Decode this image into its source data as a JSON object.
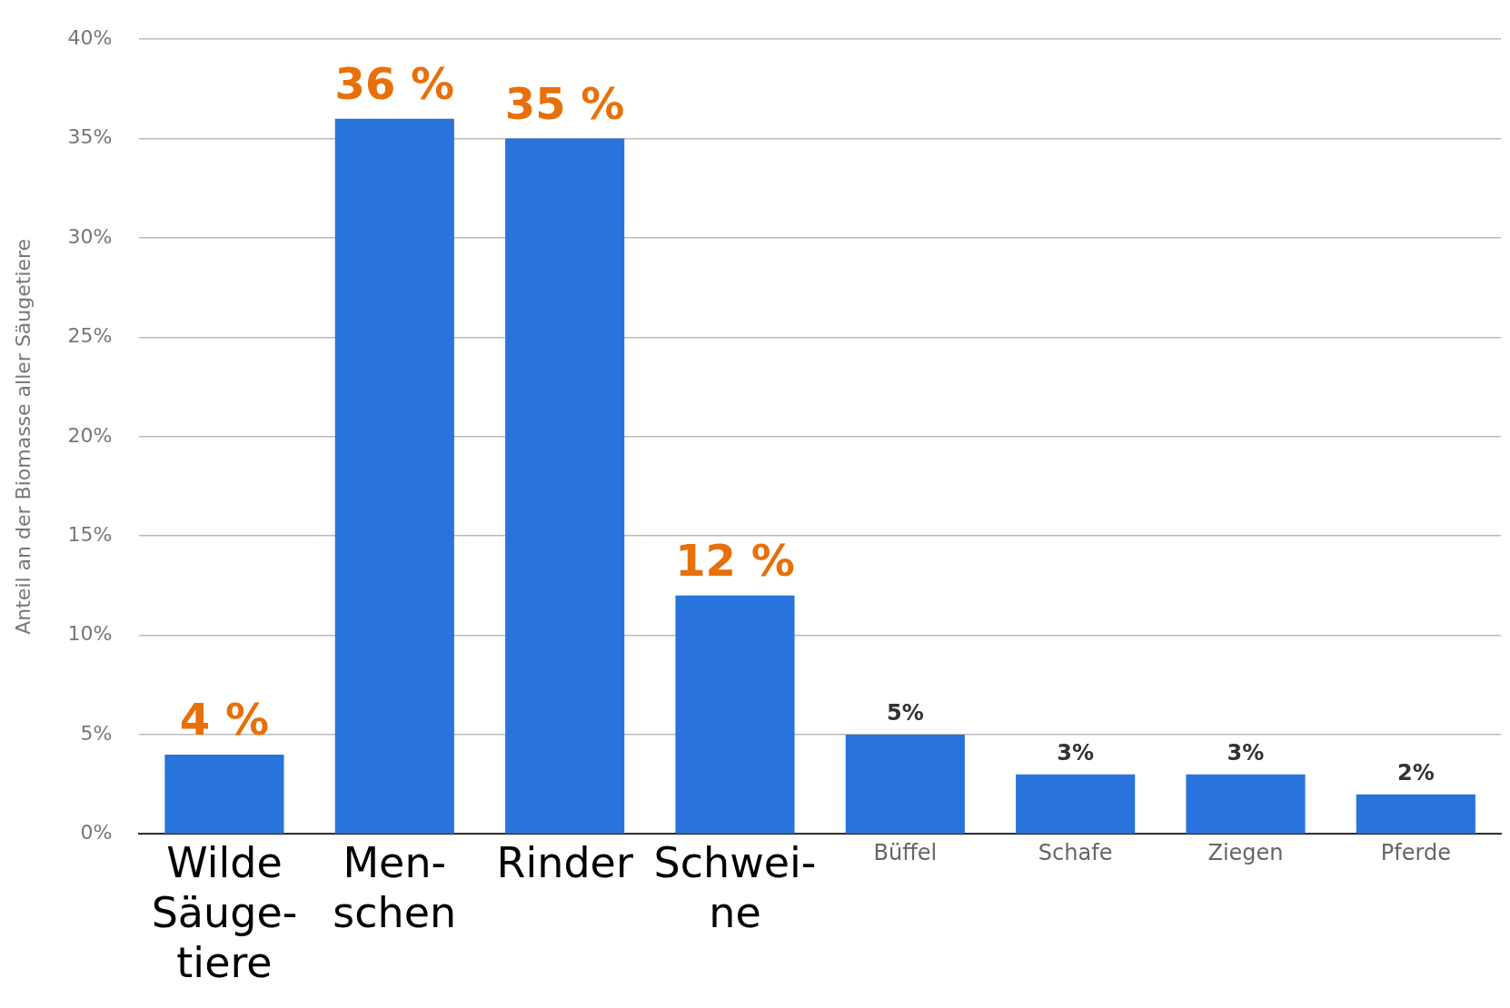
{
  "chart_data": {
    "type": "bar",
    "ylabel": "Anteil an der Biomasse aller Säugetiere",
    "categories": [
      "Wilde Säuge-tiere",
      "Men-schen",
      "Rinder",
      "Schwei-ne",
      "Büffel",
      "Schafe",
      "Ziegen",
      "Pferde"
    ],
    "values": [
      4,
      36,
      35,
      12,
      5,
      3,
      3,
      2
    ],
    "color": "#2874dc",
    "value_labels": [
      "4 %",
      "36 %",
      "35 %",
      "12 %",
      "5%",
      "3%",
      "3%",
      "2%"
    ],
    "ylim": [
      0,
      40
    ],
    "yticks": [
      {
        "value": 0,
        "label": "0%"
      },
      {
        "value": 5,
        "label": "5%"
      },
      {
        "value": 10,
        "label": "10%"
      },
      {
        "value": 15,
        "label": "15%"
      },
      {
        "value": 20,
        "label": "20%"
      },
      {
        "value": 25,
        "label": "25%"
      },
      {
        "value": 30,
        "label": "30%"
      },
      {
        "value": 35,
        "label": "35%"
      },
      {
        "value": 40,
        "label": "40%"
      }
    ],
    "grid": "y",
    "legend": false
  }
}
